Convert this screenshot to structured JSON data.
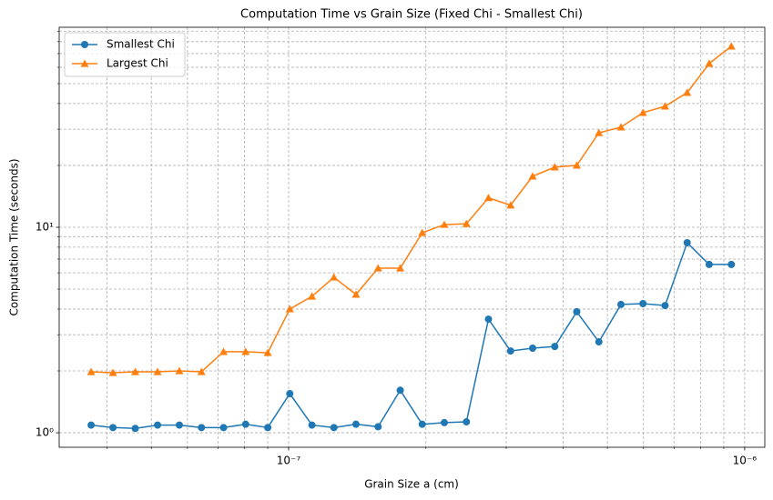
{
  "chart_data": {
    "type": "line",
    "title": "Computation Time vs Grain Size (Fixed Chi - Smallest Chi)",
    "xlabel": "Grain Size a (cm)",
    "ylabel": "Computation Time (seconds)",
    "x": [
      3.69e-08,
      4.12e-08,
      4.61e-08,
      5.16e-08,
      5.76e-08,
      6.44e-08,
      7.2e-08,
      8.05e-08,
      9e-08,
      1.006e-07,
      1.125e-07,
      1.257e-07,
      1.405e-07,
      1.571e-07,
      1.757e-07,
      1.963e-07,
      2.195e-07,
      2.454e-07,
      2.743e-07,
      3.067e-07,
      3.428e-07,
      3.833e-07,
      4.284e-07,
      4.79e-07,
      5.355e-07,
      5.984e-07,
      6.69e-07,
      7.48e-07,
      8.36e-07,
      9.35e-07
    ],
    "series": [
      {
        "name": "Smallest Chi",
        "color": "#1f77b4",
        "marker": "circle",
        "values": [
          1.09,
          1.06,
          1.05,
          1.09,
          1.09,
          1.06,
          1.06,
          1.1,
          1.06,
          1.55,
          1.09,
          1.06,
          1.1,
          1.07,
          1.61,
          1.1,
          1.12,
          1.13,
          3.57,
          2.5,
          2.58,
          2.63,
          3.88,
          2.77,
          4.21,
          4.25,
          4.16,
          8.41,
          6.59,
          6.59
        ]
      },
      {
        "name": "Largest Chi",
        "color": "#ff7f0e",
        "marker": "triangle",
        "values": [
          1.98,
          1.96,
          1.98,
          1.98,
          2.0,
          1.98,
          2.48,
          2.48,
          2.45,
          4.0,
          4.61,
          5.71,
          4.71,
          6.32,
          6.32,
          9.4,
          10.3,
          10.4,
          13.9,
          12.8,
          17.7,
          19.6,
          20.0,
          28.8,
          30.7,
          36.1,
          38.8,
          45.2,
          62.6,
          76.0
        ]
      }
    ],
    "xscale": "log",
    "yscale": "log",
    "xlim": [
      3.14e-08,
      1.107e-06
    ],
    "ylim": [
      0.85,
      94
    ],
    "xticks": [
      {
        "value": 1e-07,
        "label": "10⁻⁷"
      },
      {
        "value": 1e-06,
        "label": "10⁻⁶"
      }
    ],
    "xminor": [
      4e-08,
      5e-08,
      6e-08,
      7e-08,
      8e-08,
      9e-08,
      2e-07,
      3e-07,
      4e-07,
      5e-07,
      6e-07,
      7e-07,
      8e-07,
      9e-07
    ],
    "yticks": [
      {
        "value": 1,
        "label": "10⁰"
      },
      {
        "value": 10,
        "label": "10¹"
      }
    ],
    "yminor": [
      2,
      3,
      4,
      5,
      6,
      7,
      8,
      9,
      20,
      30,
      40,
      50,
      60,
      70,
      80,
      90
    ],
    "grid": true,
    "legend": "upper left"
  }
}
